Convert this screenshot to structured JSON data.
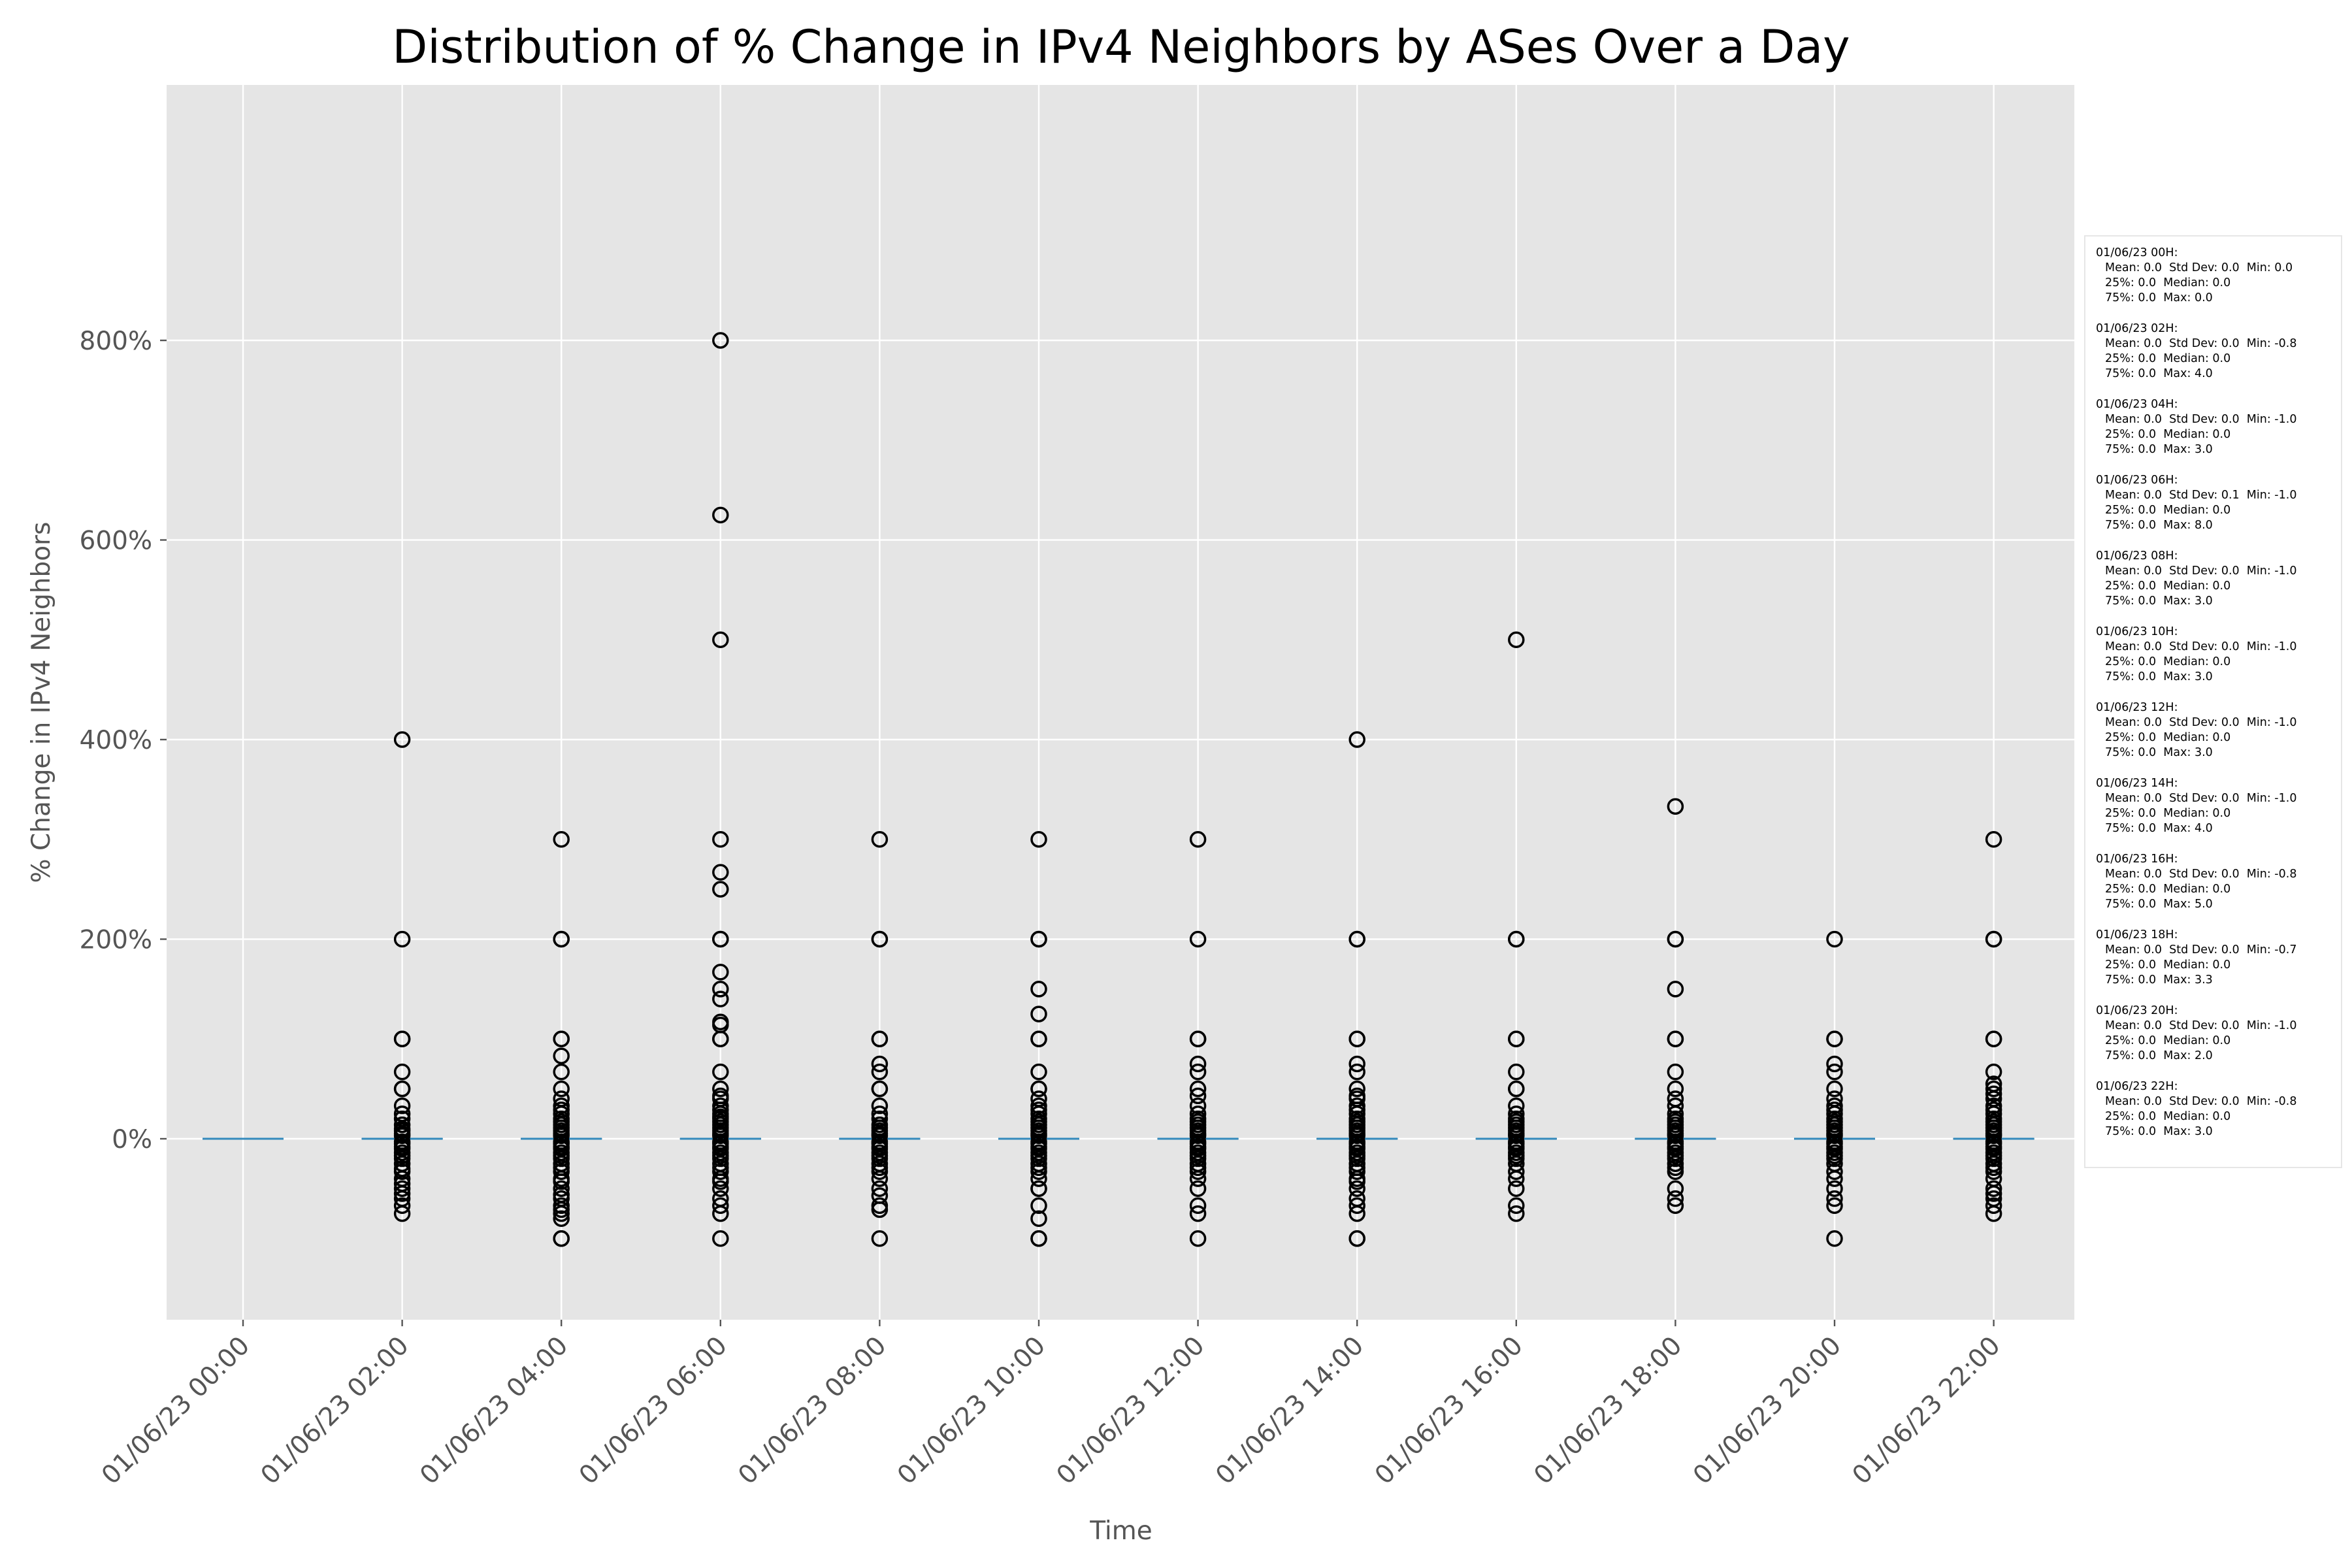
{
  "chart_data": {
    "type": "box",
    "title": "Distribution of % Change in IPv4 Neighbors by ASes Over a Day",
    "xlabel": "Time",
    "ylabel": "% Change in IPv4 Neighbors",
    "ylim": [
      -145,
      845
    ],
    "yticks": [
      0,
      200,
      400,
      600,
      800
    ],
    "ytick_labels": [
      "0%",
      "200%",
      "400%",
      "600%",
      "800%"
    ],
    "grid": true,
    "colors": {
      "plot_bg": "#e5e5e5",
      "grid": "#ffffff",
      "median": "#348abd",
      "outlier": "#000000",
      "text": "#555555"
    },
    "categories": [
      "01/06/23 00:00",
      "01/06/23 02:00",
      "01/06/23 04:00",
      "01/06/23 06:00",
      "01/06/23 08:00",
      "01/06/23 10:00",
      "01/06/23 12:00",
      "01/06/23 14:00",
      "01/06/23 16:00",
      "01/06/23 18:00",
      "01/06/23 20:00",
      "01/06/23 22:00"
    ],
    "boxes": [
      {
        "median": 0,
        "q1": 0,
        "q3": 0,
        "outliers": []
      },
      {
        "median": 0,
        "q1": 0,
        "q3": 0,
        "outliers": [
          400,
          200,
          100,
          100,
          67,
          50,
          50,
          33,
          25,
          20,
          14,
          10,
          8,
          5,
          3,
          -3,
          -5,
          -8,
          -10,
          -14,
          -17,
          -20,
          -25,
          -30,
          -33,
          -40,
          -45,
          -50,
          -55,
          -60,
          -67,
          -75
        ]
      },
      {
        "median": 0,
        "q1": 0,
        "q3": 0,
        "outliers": [
          300,
          200,
          200,
          100,
          100,
          83,
          67,
          50,
          40,
          33,
          29,
          25,
          20,
          17,
          14,
          11,
          8,
          5,
          3,
          -3,
          -5,
          -8,
          -10,
          -14,
          -17,
          -20,
          -25,
          -29,
          -33,
          -40,
          -43,
          -50,
          -56,
          -60,
          -67,
          -71,
          -75,
          -80,
          -100,
          -100
        ]
      },
      {
        "median": 0,
        "q1": 0,
        "q3": 0,
        "outliers": [
          800,
          625,
          500,
          300,
          267,
          250,
          200,
          200,
          167,
          150,
          140,
          117,
          114,
          100,
          100,
          67,
          50,
          43,
          40,
          33,
          29,
          25,
          22,
          20,
          17,
          14,
          11,
          8,
          5,
          3,
          -3,
          -5,
          -8,
          -10,
          -14,
          -17,
          -20,
          -25,
          -29,
          -33,
          -40,
          -43,
          -50,
          -60,
          -67,
          -75,
          -100
        ]
      },
      {
        "median": 0,
        "q1": 0,
        "q3": 0,
        "outliers": [
          300,
          200,
          200,
          100,
          100,
          75,
          67,
          50,
          50,
          33,
          25,
          20,
          14,
          11,
          8,
          5,
          3,
          -3,
          -5,
          -8,
          -10,
          -14,
          -17,
          -20,
          -25,
          -29,
          -33,
          -40,
          -50,
          -57,
          -67,
          -71,
          -100
        ]
      },
      {
        "median": 0,
        "q1": 0,
        "q3": 0,
        "outliers": [
          300,
          200,
          200,
          150,
          125,
          100,
          100,
          67,
          50,
          50,
          40,
          33,
          29,
          25,
          20,
          17,
          14,
          11,
          8,
          5,
          3,
          -3,
          -5,
          -8,
          -10,
          -14,
          -17,
          -20,
          -25,
          -29,
          -33,
          -40,
          -50,
          -50,
          -67,
          -80,
          -100,
          -100
        ]
      },
      {
        "median": 0,
        "q1": 0,
        "q3": 0,
        "outliers": [
          300,
          200,
          100,
          100,
          75,
          67,
          50,
          43,
          33,
          25,
          20,
          17,
          14,
          11,
          8,
          5,
          3,
          -3,
          -5,
          -8,
          -10,
          -14,
          -17,
          -20,
          -25,
          -29,
          -33,
          -40,
          -50,
          -67,
          -75,
          -100
        ]
      },
      {
        "median": 0,
        "q1": 0,
        "q3": 0,
        "outliers": [
          400,
          200,
          200,
          100,
          100,
          75,
          67,
          50,
          43,
          40,
          33,
          29,
          25,
          20,
          17,
          14,
          11,
          8,
          5,
          3,
          -3,
          -5,
          -8,
          -10,
          -14,
          -17,
          -20,
          -25,
          -29,
          -33,
          -40,
          -43,
          -50,
          -60,
          -67,
          -75,
          -100,
          -100
        ]
      },
      {
        "median": 0,
        "q1": 0,
        "q3": 0,
        "outliers": [
          500,
          200,
          200,
          100,
          100,
          67,
          50,
          50,
          33,
          25,
          20,
          17,
          14,
          11,
          8,
          5,
          3,
          -3,
          -5,
          -8,
          -10,
          -14,
          -17,
          -20,
          -25,
          -33,
          -40,
          -50,
          -67,
          -75
        ]
      },
      {
        "median": 0,
        "q1": 0,
        "q3": 0,
        "outliers": [
          333,
          200,
          200,
          150,
          100,
          100,
          67,
          50,
          40,
          33,
          25,
          20,
          17,
          14,
          11,
          8,
          5,
          3,
          -3,
          -5,
          -8,
          -10,
          -14,
          -17,
          -20,
          -25,
          -29,
          -33,
          -50,
          -60,
          -67
        ]
      },
      {
        "median": 0,
        "q1": 0,
        "q3": 0,
        "outliers": [
          200,
          100,
          100,
          75,
          67,
          50,
          40,
          33,
          29,
          25,
          20,
          17,
          14,
          11,
          8,
          5,
          3,
          -3,
          -5,
          -8,
          -10,
          -14,
          -17,
          -20,
          -25,
          -33,
          -40,
          -50,
          -60,
          -67,
          -100
        ]
      },
      {
        "median": 0,
        "q1": 0,
        "q3": 0,
        "outliers": [
          300,
          200,
          200,
          100,
          100,
          67,
          55,
          50,
          45,
          40,
          33,
          29,
          25,
          20,
          17,
          14,
          11,
          8,
          5,
          3,
          -3,
          -5,
          -8,
          -10,
          -14,
          -17,
          -20,
          -25,
          -29,
          -33,
          -40,
          -50,
          -55,
          -60,
          -67,
          -75
        ]
      }
    ]
  },
  "stats": [
    {
      "header": "01/06/23 00H:",
      "line1": "Mean: 0.0  Std Dev: 0.0  Min: 0.0",
      "line2": "25%: 0.0  Median: 0.0",
      "line3": "75%: 0.0  Max: 0.0"
    },
    {
      "header": "01/06/23 02H:",
      "line1": "Mean: 0.0  Std Dev: 0.0  Min: -0.8",
      "line2": "25%: 0.0  Median: 0.0",
      "line3": "75%: 0.0  Max: 4.0"
    },
    {
      "header": "01/06/23 04H:",
      "line1": "Mean: 0.0  Std Dev: 0.0  Min: -1.0",
      "line2": "25%: 0.0  Median: 0.0",
      "line3": "75%: 0.0  Max: 3.0"
    },
    {
      "header": "01/06/23 06H:",
      "line1": "Mean: 0.0  Std Dev: 0.1  Min: -1.0",
      "line2": "25%: 0.0  Median: 0.0",
      "line3": "75%: 0.0  Max: 8.0"
    },
    {
      "header": "01/06/23 08H:",
      "line1": "Mean: 0.0  Std Dev: 0.0  Min: -1.0",
      "line2": "25%: 0.0  Median: 0.0",
      "line3": "75%: 0.0  Max: 3.0"
    },
    {
      "header": "01/06/23 10H:",
      "line1": "Mean: 0.0  Std Dev: 0.0  Min: -1.0",
      "line2": "25%: 0.0  Median: 0.0",
      "line3": "75%: 0.0  Max: 3.0"
    },
    {
      "header": "01/06/23 12H:",
      "line1": "Mean: 0.0  Std Dev: 0.0  Min: -1.0",
      "line2": "25%: 0.0  Median: 0.0",
      "line3": "75%: 0.0  Max: 3.0"
    },
    {
      "header": "01/06/23 14H:",
      "line1": "Mean: 0.0  Std Dev: 0.0  Min: -1.0",
      "line2": "25%: 0.0  Median: 0.0",
      "line3": "75%: 0.0  Max: 4.0"
    },
    {
      "header": "01/06/23 16H:",
      "line1": "Mean: 0.0  Std Dev: 0.0  Min: -0.8",
      "line2": "25%: 0.0  Median: 0.0",
      "line3": "75%: 0.0  Max: 5.0"
    },
    {
      "header": "01/06/23 18H:",
      "line1": "Mean: 0.0  Std Dev: 0.0  Min: -0.7",
      "line2": "25%: 0.0  Median: 0.0",
      "line3": "75%: 0.0  Max: 3.3"
    },
    {
      "header": "01/06/23 20H:",
      "line1": "Mean: 0.0  Std Dev: 0.0  Min: -1.0",
      "line2": "25%: 0.0  Median: 0.0",
      "line3": "75%: 0.0  Max: 2.0"
    },
    {
      "header": "01/06/23 22H:",
      "line1": "Mean: 0.0  Std Dev: 0.0  Min: -0.8",
      "line2": "25%: 0.0  Median: 0.0",
      "line3": "75%: 0.0  Max: 3.0"
    }
  ]
}
